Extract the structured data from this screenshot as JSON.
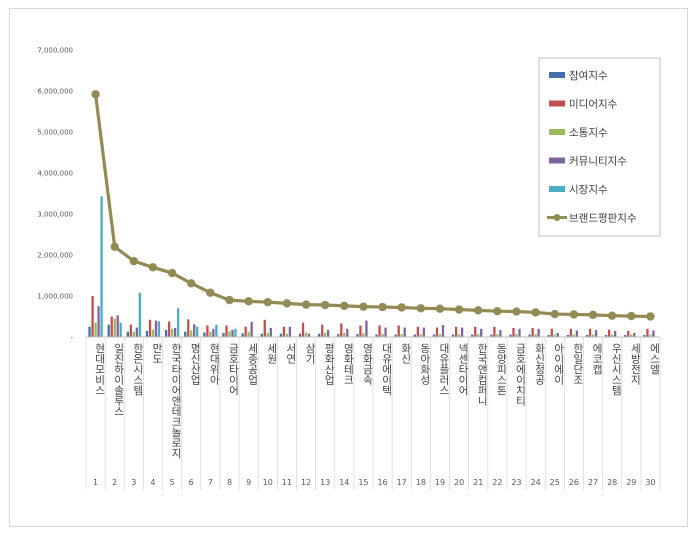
{
  "chart_data": {
    "type": "bar",
    "title": "",
    "xlabel": "",
    "ylabel": "",
    "ylim": [
      0,
      7000000
    ],
    "yticks": [
      "-",
      "1,000,000",
      "2,000,000",
      "3,000,000",
      "4,000,000",
      "5,000,000",
      "6,000,000",
      "7,000,000"
    ],
    "grid": false,
    "legend_position": "top-right",
    "categories": [
      "현대모비스",
      "일진하이솔루스",
      "한온시스템",
      "만도",
      "한국타이어앤테크놀로지",
      "명신산업",
      "현대위아",
      "금호타이어",
      "세종공업",
      "세원",
      "서연",
      "삼기",
      "평화산업",
      "영화테크",
      "영화금속",
      "대유에이텍",
      "화신",
      "동아화성",
      "대유플러스",
      "넥센타이어",
      "한국앤컴퍼니",
      "동양피스톤",
      "금호에이치티",
      "화신정공",
      "아이에이",
      "한일단조",
      "에코캡",
      "우신시스템",
      "세방전지",
      "에스엘"
    ],
    "x_numbers": [
      "1",
      "2",
      "3",
      "4",
      "5",
      "6",
      "7",
      "8",
      "9",
      "10",
      "11",
      "12",
      "13",
      "14",
      "15",
      "16",
      "17",
      "18",
      "19",
      "20",
      "21",
      "22",
      "23",
      "24",
      "25",
      "26",
      "27",
      "28",
      "29",
      "30"
    ],
    "series": [
      {
        "name": "참여지수",
        "kind": "bar",
        "color": "#4472a8",
        "values": [
          250000,
          300000,
          130000,
          150000,
          170000,
          130000,
          110000,
          100000,
          90000,
          80000,
          80000,
          80000,
          80000,
          70000,
          70000,
          60000,
          60000,
          60000,
          60000,
          60000,
          60000,
          60000,
          60000,
          60000,
          50000,
          50000,
          50000,
          50000,
          50000,
          50000
        ]
      },
      {
        "name": "미디어지수",
        "kind": "bar",
        "color": "#c0504d",
        "values": [
          1000000,
          500000,
          300000,
          420000,
          380000,
          430000,
          280000,
          280000,
          250000,
          420000,
          250000,
          350000,
          300000,
          330000,
          280000,
          280000,
          280000,
          250000,
          230000,
          250000,
          250000,
          250000,
          220000,
          220000,
          200000,
          200000,
          200000,
          180000,
          150000,
          200000
        ]
      },
      {
        "name": "소통지수",
        "kind": "bar",
        "color": "#9bbb59",
        "values": [
          350000,
          450000,
          130000,
          180000,
          200000,
          160000,
          130000,
          140000,
          120000,
          100000,
          80000,
          110000,
          100000,
          100000,
          90000,
          80000,
          70000,
          70000,
          70000,
          70000,
          70000,
          70000,
          70000,
          70000,
          60000,
          60000,
          60000,
          60000,
          60000,
          60000
        ]
      },
      {
        "name": "커뮤니티지수",
        "kind": "bar",
        "color": "#8064a2",
        "values": [
          750000,
          530000,
          230000,
          400000,
          220000,
          310000,
          200000,
          170000,
          370000,
          220000,
          250000,
          80000,
          170000,
          200000,
          400000,
          230000,
          230000,
          230000,
          290000,
          230000,
          200000,
          170000,
          200000,
          200000,
          100000,
          160000,
          170000,
          150000,
          100000,
          160000
        ]
      },
      {
        "name": "시장지수",
        "kind": "bar",
        "color": "#4bacc6",
        "values": [
          3430000,
          350000,
          1080000,
          380000,
          700000,
          250000,
          300000,
          200000,
          0,
          0,
          0,
          0,
          0,
          0,
          0,
          0,
          0,
          0,
          0,
          0,
          0,
          0,
          0,
          0,
          0,
          0,
          0,
          0,
          0,
          0
        ]
      },
      {
        "name": "브랜드평판지수",
        "kind": "line",
        "color": "#948a54",
        "values": [
          5920000,
          2200000,
          1850000,
          1700000,
          1560000,
          1310000,
          1080000,
          900000,
          870000,
          850000,
          820000,
          790000,
          780000,
          760000,
          740000,
          730000,
          720000,
          700000,
          690000,
          670000,
          650000,
          630000,
          620000,
          600000,
          560000,
          550000,
          540000,
          520000,
          510000,
          500000
        ]
      }
    ]
  }
}
